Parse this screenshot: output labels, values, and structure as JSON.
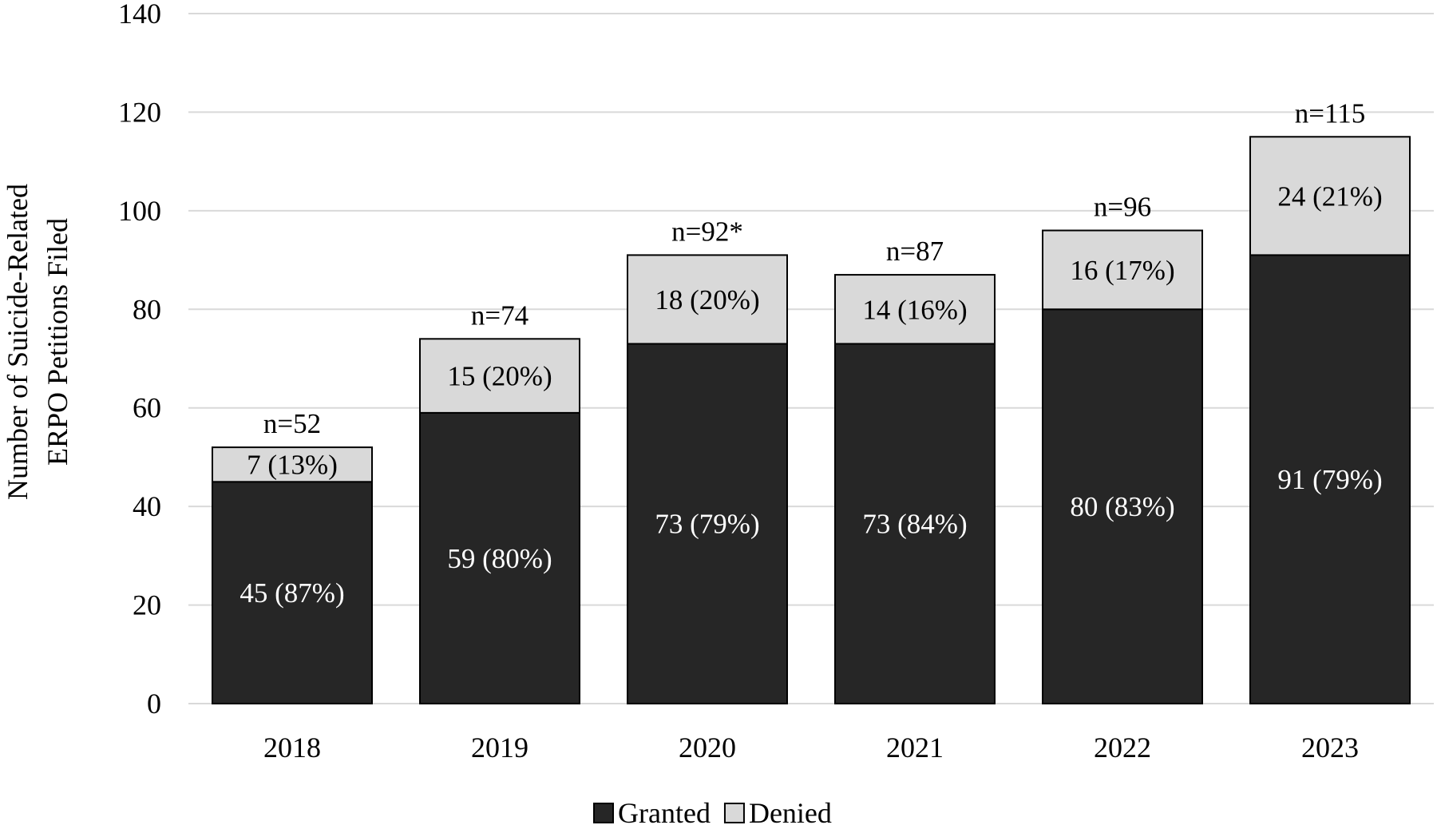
{
  "chart_data": {
    "type": "bar",
    "stacked": true,
    "categories": [
      "2018",
      "2019",
      "2020",
      "2021",
      "2022",
      "2023"
    ],
    "series": [
      {
        "name": "Granted",
        "color": "#262626",
        "values": [
          45,
          59,
          73,
          73,
          80,
          91
        ],
        "labels": [
          "45 (87%)",
          "59 (80%)",
          "73 (79%)",
          "73 (84%)",
          "80 (83%)",
          "91 (79%)"
        ]
      },
      {
        "name": "Denied",
        "color": "#d9d9d9",
        "values": [
          7,
          15,
          18,
          14,
          16,
          24
        ],
        "labels": [
          "7 (13%)",
          "15 (20%)",
          "18 (20%)",
          "14 (16%)",
          "16 (17%)",
          "24 (21%)"
        ]
      }
    ],
    "totals": [
      "n=52",
      "n=74",
      "n=92*",
      "n=87",
      "n=96",
      "n=115"
    ],
    "ylabel": [
      "Number of Suicide-Related",
      "ERPO Petitions Filed"
    ],
    "xlabel": "",
    "ylim": [
      0,
      140
    ],
    "yticks": [
      0,
      20,
      40,
      60,
      80,
      100,
      120,
      140
    ],
    "grid": true,
    "legend_position": "bottom"
  }
}
